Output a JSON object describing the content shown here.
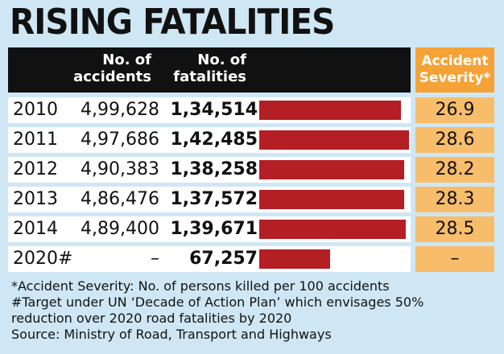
{
  "title": "RISING FATALITIES",
  "header": {
    "accidents_label_1": "No. of",
    "accidents_label_2": "accidents",
    "fatalities_label_1": "No. of",
    "fatalities_label_2": "fatalities",
    "severity_label_1": "Accident",
    "severity_label_2": "Severity*"
  },
  "chart_data": {
    "type": "table",
    "columns": [
      "No. of accidents",
      "No. of fatalities",
      "Accident Severity*"
    ],
    "rows": [
      {
        "year": "2010",
        "accidents": "4,99,628",
        "fatalities": "1,34,514",
        "fatalities_value": 134514,
        "severity": "26.9"
      },
      {
        "year": "2011",
        "accidents": "4,97,686",
        "fatalities": "1,42,485",
        "fatalities_value": 142485,
        "severity": "28.6"
      },
      {
        "year": "2012",
        "accidents": "4,90,383",
        "fatalities": "1,38,258",
        "fatalities_value": 138258,
        "severity": "28.2"
      },
      {
        "year": "2013",
        "accidents": "4,86,476",
        "fatalities": "1,37,572",
        "fatalities_value": 137572,
        "severity": "28.3"
      },
      {
        "year": "2014",
        "accidents": "4,89,400",
        "fatalities": "1,39,671",
        "fatalities_value": 139671,
        "severity": "28.5"
      },
      {
        "year": "2020#",
        "accidents": "–",
        "fatalities": "67,257",
        "fatalities_value": 67257,
        "severity": "–"
      }
    ]
  },
  "notes": [
    "*Accident Severity: No. of persons killed per 100 accidents",
    "#Target under UN ‘Decade of Action Plan’ which envisages 50%",
    "reduction over 2020 road fatalities by 2020",
    "Source: Ministry of Road, Transport and Highways"
  ],
  "colors": {
    "background": "#cfe7f4",
    "header": "#111111",
    "bar": "#b31f24",
    "severity_header": "#f5a236",
    "severity_cell": "#f7bd6a"
  }
}
